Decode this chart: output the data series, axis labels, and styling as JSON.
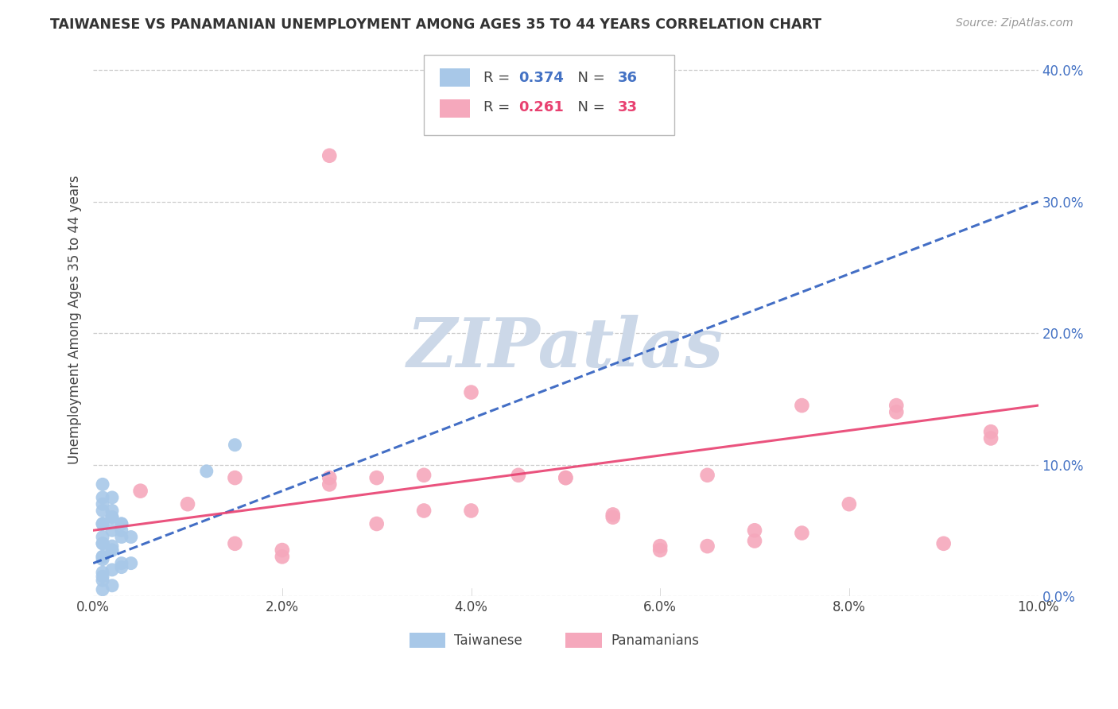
{
  "title": "TAIWANESE VS PANAMANIAN UNEMPLOYMENT AMONG AGES 35 TO 44 YEARS CORRELATION CHART",
  "source": "Source: ZipAtlas.com",
  "ylabel": "Unemployment Among Ages 35 to 44 years",
  "xlim": [
    0.0,
    0.1
  ],
  "ylim": [
    0.0,
    0.42
  ],
  "xticks": [
    0.0,
    0.02,
    0.04,
    0.06,
    0.08,
    0.1
  ],
  "yticks": [
    0.0,
    0.1,
    0.2,
    0.3,
    0.4
  ],
  "taiwanese_R": 0.374,
  "taiwanese_N": 36,
  "panamanian_R": 0.261,
  "panamanian_N": 33,
  "taiwanese_color": "#a8c8e8",
  "panamanian_color": "#f5a8bc",
  "taiwanese_line_color": "#2255bb",
  "panamanian_line_color": "#e84070",
  "yaxis_color": "#4472c4",
  "background_color": "#ffffff",
  "grid_color": "#cccccc",
  "watermark_color": "#ccd8e8",
  "taiwanese_x": [
    0.001,
    0.002,
    0.001,
    0.003,
    0.002,
    0.001,
    0.004,
    0.003,
    0.002,
    0.001,
    0.001,
    0.002,
    0.001,
    0.003,
    0.002,
    0.001,
    0.004,
    0.003,
    0.002,
    0.001,
    0.001,
    0.002,
    0.001,
    0.003,
    0.002,
    0.001,
    0.001,
    0.002,
    0.001,
    0.003,
    0.001,
    0.001,
    0.002,
    0.001,
    0.015,
    0.012
  ],
  "taiwanese_y": [
    0.085,
    0.075,
    0.065,
    0.055,
    0.06,
    0.07,
    0.045,
    0.055,
    0.05,
    0.04,
    0.055,
    0.065,
    0.075,
    0.045,
    0.035,
    0.03,
    0.025,
    0.025,
    0.02,
    0.015,
    0.03,
    0.035,
    0.04,
    0.05,
    0.06,
    0.045,
    0.055,
    0.038,
    0.028,
    0.022,
    0.018,
    0.012,
    0.008,
    0.005,
    0.115,
    0.095
  ],
  "panamanian_x": [
    0.005,
    0.01,
    0.015,
    0.02,
    0.025,
    0.03,
    0.035,
    0.04,
    0.05,
    0.055,
    0.06,
    0.065,
    0.07,
    0.075,
    0.08,
    0.085,
    0.09,
    0.095,
    0.02,
    0.03,
    0.04,
    0.05,
    0.06,
    0.07,
    0.015,
    0.025,
    0.035,
    0.065,
    0.085,
    0.095,
    0.045,
    0.055,
    0.075
  ],
  "panamanian_y": [
    0.08,
    0.07,
    0.09,
    0.035,
    0.09,
    0.09,
    0.065,
    0.155,
    0.09,
    0.06,
    0.035,
    0.038,
    0.05,
    0.145,
    0.07,
    0.14,
    0.04,
    0.125,
    0.03,
    0.055,
    0.065,
    0.09,
    0.038,
    0.042,
    0.04,
    0.085,
    0.092,
    0.092,
    0.145,
    0.12,
    0.092,
    0.062,
    0.048
  ],
  "panamanian_outlier_x": [
    0.025
  ],
  "panamanian_outlier_y": [
    0.335
  ],
  "taiwanese_trendline_x": [
    0.0,
    0.1
  ],
  "taiwanese_trendline_y": [
    0.025,
    0.3
  ],
  "panamanian_trendline_x": [
    0.0,
    0.1
  ],
  "panamanian_trendline_y": [
    0.05,
    0.145
  ]
}
